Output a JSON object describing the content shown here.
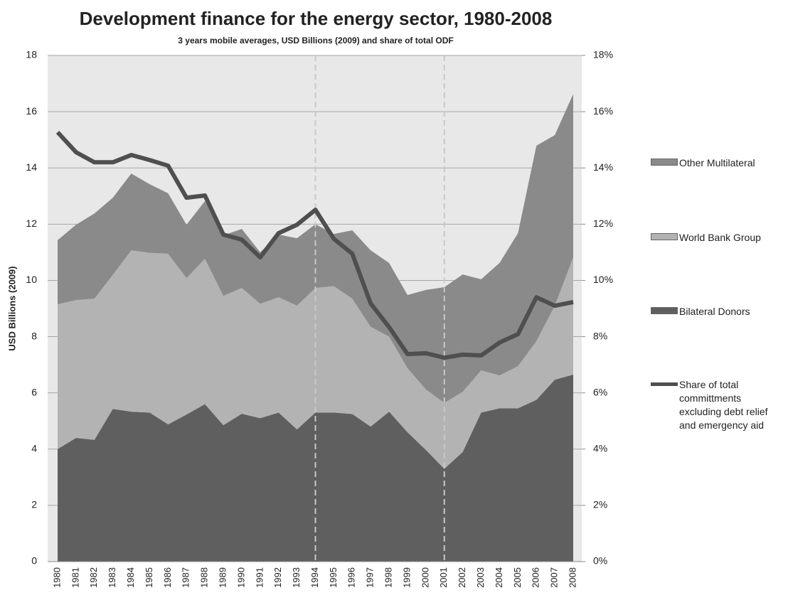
{
  "chart_data": {
    "type": "stacked_area_line",
    "title": "Development finance for the energy sector, 1980-2008",
    "subtitle": "3 years mobile averages, USD Billions (2009) and share of total ODF",
    "y_label": "USD Billions (2009)",
    "categories": [
      "1980",
      "1981",
      "1982",
      "1983",
      "1984",
      "1985",
      "1986",
      "1987",
      "1988",
      "1989",
      "1990",
      "1991",
      "1992",
      "1993",
      "1994",
      "1995",
      "1996",
      "1997",
      "1998",
      "1999",
      "2000",
      "2001",
      "2002",
      "2003",
      "2004",
      "2005",
      "2006",
      "2007",
      "2008"
    ],
    "series": [
      {
        "name": "Bilateral Donors",
        "color": "#5f5f5f",
        "values": [
          4.0,
          4.4,
          4.33,
          5.43,
          5.33,
          5.3,
          4.88,
          5.23,
          5.6,
          4.85,
          5.26,
          5.1,
          5.3,
          4.7,
          5.3,
          5.3,
          5.25,
          4.8,
          5.33,
          4.6,
          3.97,
          3.3,
          3.9,
          5.3,
          5.45,
          5.45,
          5.75,
          6.47,
          6.65
        ]
      },
      {
        "name": "World Bank Group",
        "color": "#b3b3b3",
        "values": [
          5.15,
          4.9,
          5.02,
          4.77,
          5.74,
          5.68,
          6.07,
          4.85,
          5.17,
          4.6,
          4.47,
          4.07,
          4.1,
          4.4,
          4.43,
          4.5,
          4.1,
          3.55,
          2.67,
          2.28,
          2.15,
          2.34,
          2.14,
          1.5,
          1.17,
          1.5,
          2.09,
          2.63,
          4.17
        ]
      },
      {
        "name": "Other Multilateral",
        "color": "#8a8a8a",
        "values": [
          2.28,
          2.68,
          3.03,
          2.74,
          2.73,
          2.44,
          2.15,
          1.9,
          2.05,
          2.15,
          2.1,
          1.83,
          2.23,
          2.4,
          2.27,
          1.85,
          2.43,
          2.72,
          2.62,
          2.6,
          3.54,
          4.12,
          4.17,
          3.24,
          4.0,
          4.73,
          6.95,
          6.07,
          5.81
        ]
      },
      {
        "name": "Share of total committments excluding debt relief and emergency aid",
        "color": "#4f4f4f",
        "axis": "y2",
        "values": [
          15.27,
          14.56,
          14.2,
          14.2,
          14.46,
          14.28,
          14.08,
          12.94,
          13.02,
          11.63,
          11.45,
          10.82,
          11.68,
          11.98,
          12.51,
          11.48,
          10.95,
          9.18,
          8.34,
          7.38,
          7.41,
          7.25,
          7.36,
          7.33,
          7.79,
          8.09,
          9.4,
          9.1,
          9.23
        ]
      }
    ],
    "ylim": [
      0,
      18
    ],
    "yticks": [
      0,
      2,
      4,
      6,
      8,
      10,
      12,
      14,
      16,
      18
    ],
    "y2lim": [
      0,
      18
    ],
    "y2ticks": [
      {
        "value": 0,
        "label": "0%"
      },
      {
        "value": 2,
        "label": "2%"
      },
      {
        "value": 4,
        "label": "4%"
      },
      {
        "value": 6,
        "label": "6%"
      },
      {
        "value": 8,
        "label": "8%"
      },
      {
        "value": 10,
        "label": "10%"
      },
      {
        "value": 12,
        "label": "12%"
      },
      {
        "value": 14,
        "label": "14%"
      },
      {
        "value": 16,
        "label": "16%"
      },
      {
        "value": 18,
        "label": "18%"
      }
    ],
    "grid": true,
    "plot_background": "#e8e8e8",
    "vlines": [
      "1994",
      "2001"
    ],
    "legend": "right"
  }
}
